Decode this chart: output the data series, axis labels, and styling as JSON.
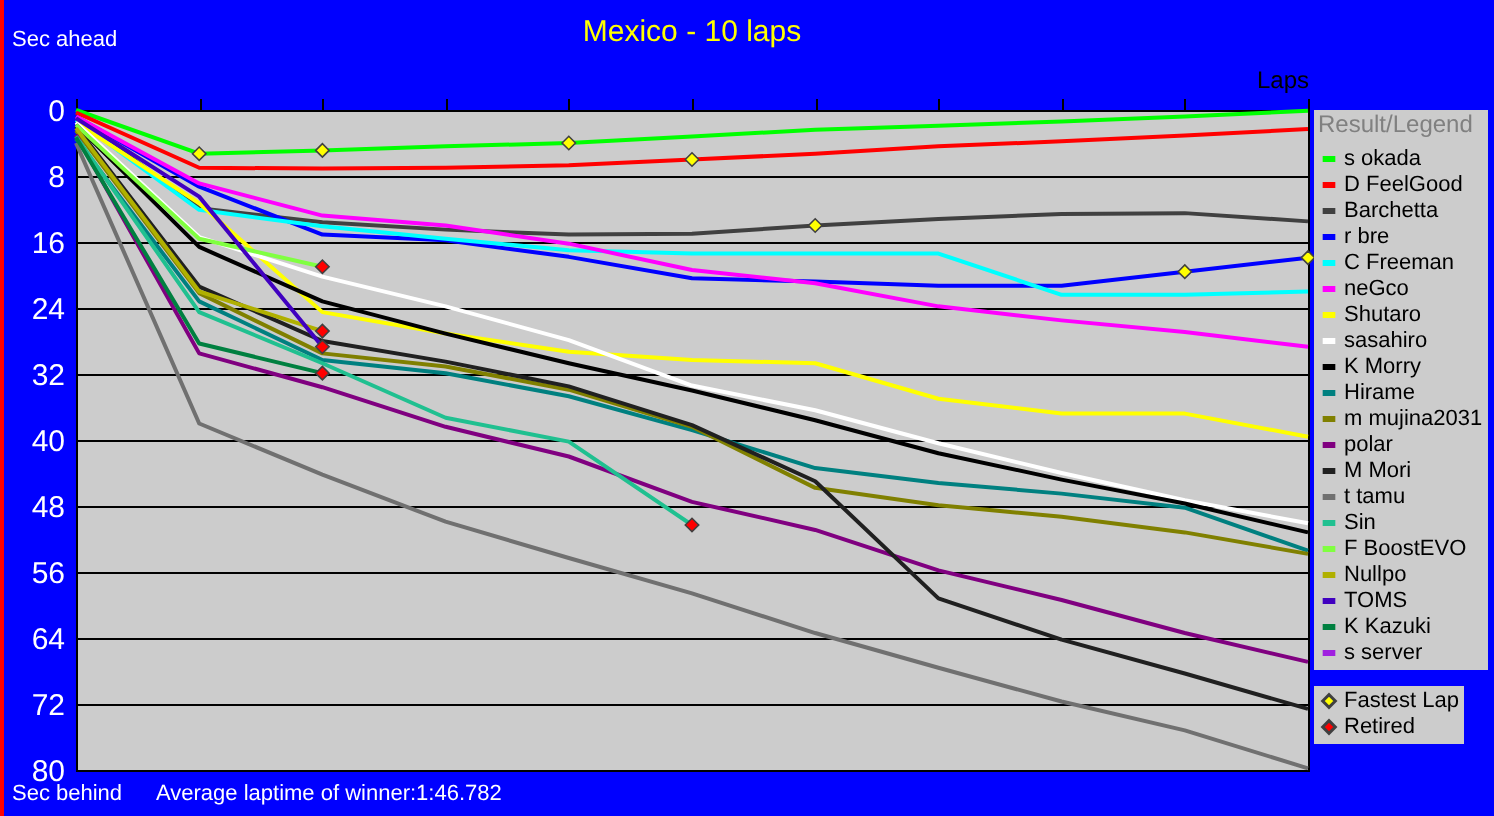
{
  "chart_data": {
    "type": "line",
    "title": "Mexico - 10 laps",
    "xlabel": "Laps",
    "ylabel": "Sec ahead",
    "legend_title": "Result/Legend",
    "annotations": [
      "Sec behind",
      "Average laptime of winner:1:46.782"
    ],
    "categories": [
      null,
      null,
      null,
      null,
      null,
      null,
      null,
      null,
      null,
      null,
      null
    ],
    "ylim": [
      80,
      0
    ],
    "yticks": [
      0,
      8,
      16,
      24,
      32,
      40,
      48,
      56,
      64,
      72,
      80
    ],
    "grid": "y",
    "legend": "right",
    "tick_labels": "y",
    "line_style": "solid",
    "series": [
      {
        "name": "s okada",
        "color": "#00ff00",
        "values": [
          0,
          5.3,
          4.9,
          4.4,
          4.0,
          3.2,
          2.4,
          1.9,
          1.4,
          0.8,
          0.1
        ]
      },
      {
        "name": "D FeelGood",
        "color": "#ff0000",
        "values": [
          0.3,
          7.0,
          7.1,
          7.0,
          6.7,
          6.0,
          5.3,
          4.4,
          3.8,
          3.1,
          2.3
        ]
      },
      {
        "name": "Barchetta",
        "color": "#404040",
        "values": [
          0.8,
          11.9,
          13.6,
          14.5,
          15.1,
          15.0,
          14.0,
          13.2,
          12.6,
          12.5,
          13.5
        ]
      },
      {
        "name": "r bre",
        "color": "#0000ff",
        "values": [
          0.8,
          9.3,
          15.1,
          15.8,
          17.8,
          20.4,
          20.8,
          21.3,
          21.3,
          19.6,
          17.9
        ]
      },
      {
        "name": "C Freeman",
        "color": "#00ffff",
        "values": [
          1.2,
          12.1,
          14.1,
          15.6,
          17.0,
          17.4,
          17.4,
          17.4,
          22.4,
          22.4,
          22.0
        ]
      },
      {
        "name": "neGco",
        "color": "#ff00ff",
        "values": [
          0.8,
          8.9,
          12.8,
          14.0,
          16.2,
          19.4,
          21.0,
          23.8,
          25.5,
          26.9,
          28.7
        ]
      },
      {
        "name": "Shutaro",
        "color": "#ffff00",
        "values": [
          1.5,
          11.3,
          24.5,
          27.1,
          29.3,
          30.3,
          30.7,
          35.0,
          36.8,
          36.8,
          39.6
        ]
      },
      {
        "name": "sasahiro",
        "color": "#ffffff",
        "values": [
          1.5,
          15.4,
          20.2,
          23.8,
          27.9,
          33.4,
          36.4,
          40.4,
          44.0,
          47.3,
          50.1
        ]
      },
      {
        "name": "K Morry",
        "color": "#000000",
        "values": [
          1.8,
          16.6,
          23.2,
          27.1,
          30.7,
          34.0,
          37.6,
          41.6,
          44.8,
          47.7,
          51.2
        ]
      },
      {
        "name": "Hirame",
        "color": "#008080",
        "values": [
          3.5,
          23.2,
          30.3,
          31.9,
          34.7,
          38.8,
          43.4,
          45.2,
          46.5,
          48.2,
          53.4
        ]
      },
      {
        "name": "m mujina2031",
        "color": "#808000",
        "values": [
          2.5,
          22.2,
          29.5,
          31.1,
          33.9,
          38.4,
          45.8,
          47.9,
          49.3,
          51.2,
          53.8
        ]
      },
      {
        "name": "polar",
        "color": "#800080",
        "values": [
          3.0,
          29.5,
          33.6,
          38.4,
          42.0,
          47.5,
          50.9,
          55.8,
          59.4,
          63.4,
          66.9
        ]
      },
      {
        "name": "M Mori",
        "color": "#202020",
        "values": [
          2.0,
          21.4,
          28.0,
          30.5,
          33.5,
          38.2,
          45.0,
          59.2,
          64.2,
          68.3,
          72.6
        ]
      },
      {
        "name": "t tamu",
        "color": "#707070",
        "values": [
          4.0,
          38.0,
          44.2,
          49.9,
          54.3,
          58.6,
          63.4,
          67.6,
          71.7,
          75.2,
          79.8
        ]
      },
      {
        "name": "Sin",
        "color": "#20c090",
        "values": [
          3.2,
          24.5,
          30.7,
          37.3,
          40.2,
          50.3,
          null,
          null,
          null,
          null,
          null
        ]
      },
      {
        "name": "F BoostEVO",
        "color": "#80ff40",
        "values": [
          1.8,
          15.6,
          19.0,
          null,
          null,
          null,
          null,
          null,
          null,
          null,
          null
        ]
      },
      {
        "name": "Nullpo",
        "color": "#b0b000",
        "values": [
          2.2,
          22.0,
          26.8,
          null,
          null,
          null,
          null,
          null,
          null,
          null,
          null
        ]
      },
      {
        "name": "TOMS",
        "color": "#4000c0",
        "values": [
          1.0,
          10.5,
          28.7,
          null,
          null,
          null,
          null,
          null,
          null,
          null,
          null
        ]
      },
      {
        "name": "K Kazuki",
        "color": "#008040",
        "values": [
          3.3,
          28.3,
          31.9,
          null,
          null,
          null,
          null,
          null,
          null,
          null,
          null
        ]
      },
      {
        "name": "s server",
        "color": "#a020e0",
        "values": [
          null,
          null,
          null,
          null,
          null,
          null,
          null,
          null,
          null,
          null,
          null
        ]
      },
      {
        "name": "Fastest Lap",
        "type": "scatter",
        "marker": "diamond",
        "color": "#ffff00",
        "values": [
          null,
          5.3,
          4.9,
          null,
          4.0,
          6.0,
          14.0,
          null,
          null,
          19.6,
          17.9
        ]
      },
      {
        "name": "Retired",
        "type": "scatter",
        "marker": "diamond",
        "color": "#ff0000",
        "values": [
          null,
          null,
          19.0,
          null,
          null,
          50.3,
          null,
          null,
          null,
          null,
          null
        ]
      },
      {
        "type": "scatter",
        "marker": "diamond",
        "color": "#ff0000",
        "values": [
          null,
          null,
          26.8,
          null,
          null,
          null,
          null,
          null,
          null,
          null,
          null
        ]
      },
      {
        "type": "scatter",
        "marker": "diamond",
        "color": "#ff0000",
        "values": [
          null,
          null,
          28.7,
          null,
          null,
          null,
          null,
          null,
          null,
          null,
          null
        ]
      },
      {
        "type": "scatter",
        "marker": "diamond",
        "color": "#ff0000",
        "values": [
          null,
          null,
          31.9,
          null,
          null,
          null,
          null,
          null,
          null,
          null,
          null
        ]
      }
    ]
  }
}
